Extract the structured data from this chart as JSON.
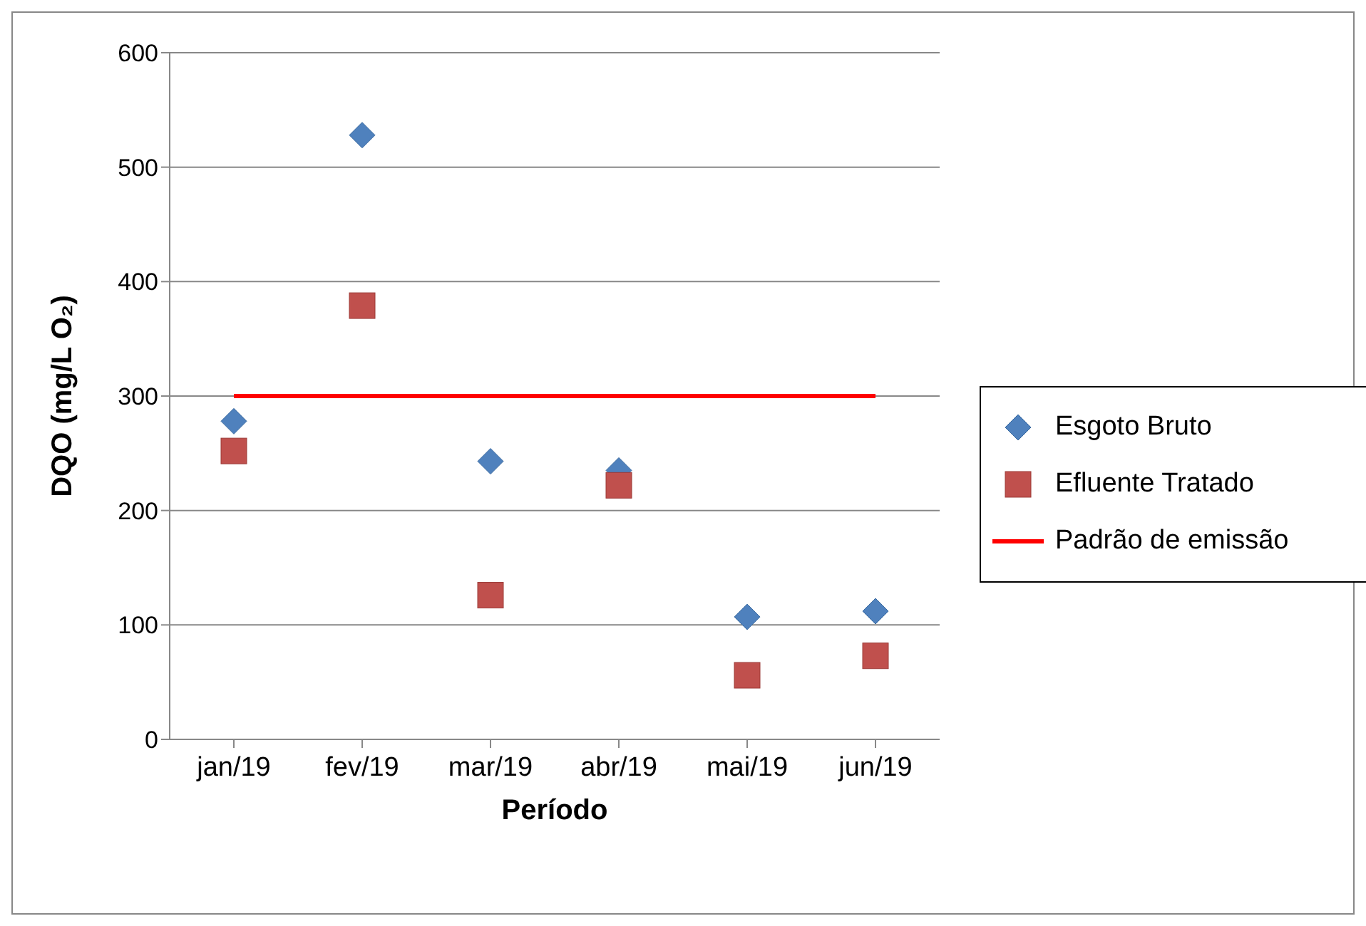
{
  "chart_data": {
    "type": "scatter",
    "xlabel": "Período",
    "ylabel": "DQO (mg/L O₂)",
    "categories": [
      "jan/19",
      "fev/19",
      "mar/19",
      "abr/19",
      "mai/19",
      "jun/19"
    ],
    "series": [
      {
        "name": "Esgoto Bruto",
        "color": "#4f81bd",
        "marker": "diamond",
        "values": [
          278,
          528,
          243,
          235,
          107,
          112
        ]
      },
      {
        "name": "Efluente Tratado",
        "color": "#c0504d",
        "marker": "square",
        "values": [
          252,
          379,
          126,
          222,
          56,
          73
        ]
      },
      {
        "name": "Padrão de emissão",
        "type": "line",
        "color": "#ff0000",
        "marker": "none",
        "values": [
          300,
          300,
          300,
          300,
          300,
          300
        ]
      }
    ],
    "ylim": [
      0,
      600
    ],
    "yticks": [
      0,
      100,
      200,
      300,
      400,
      500,
      600
    ],
    "grid": "y",
    "legend": "right"
  }
}
